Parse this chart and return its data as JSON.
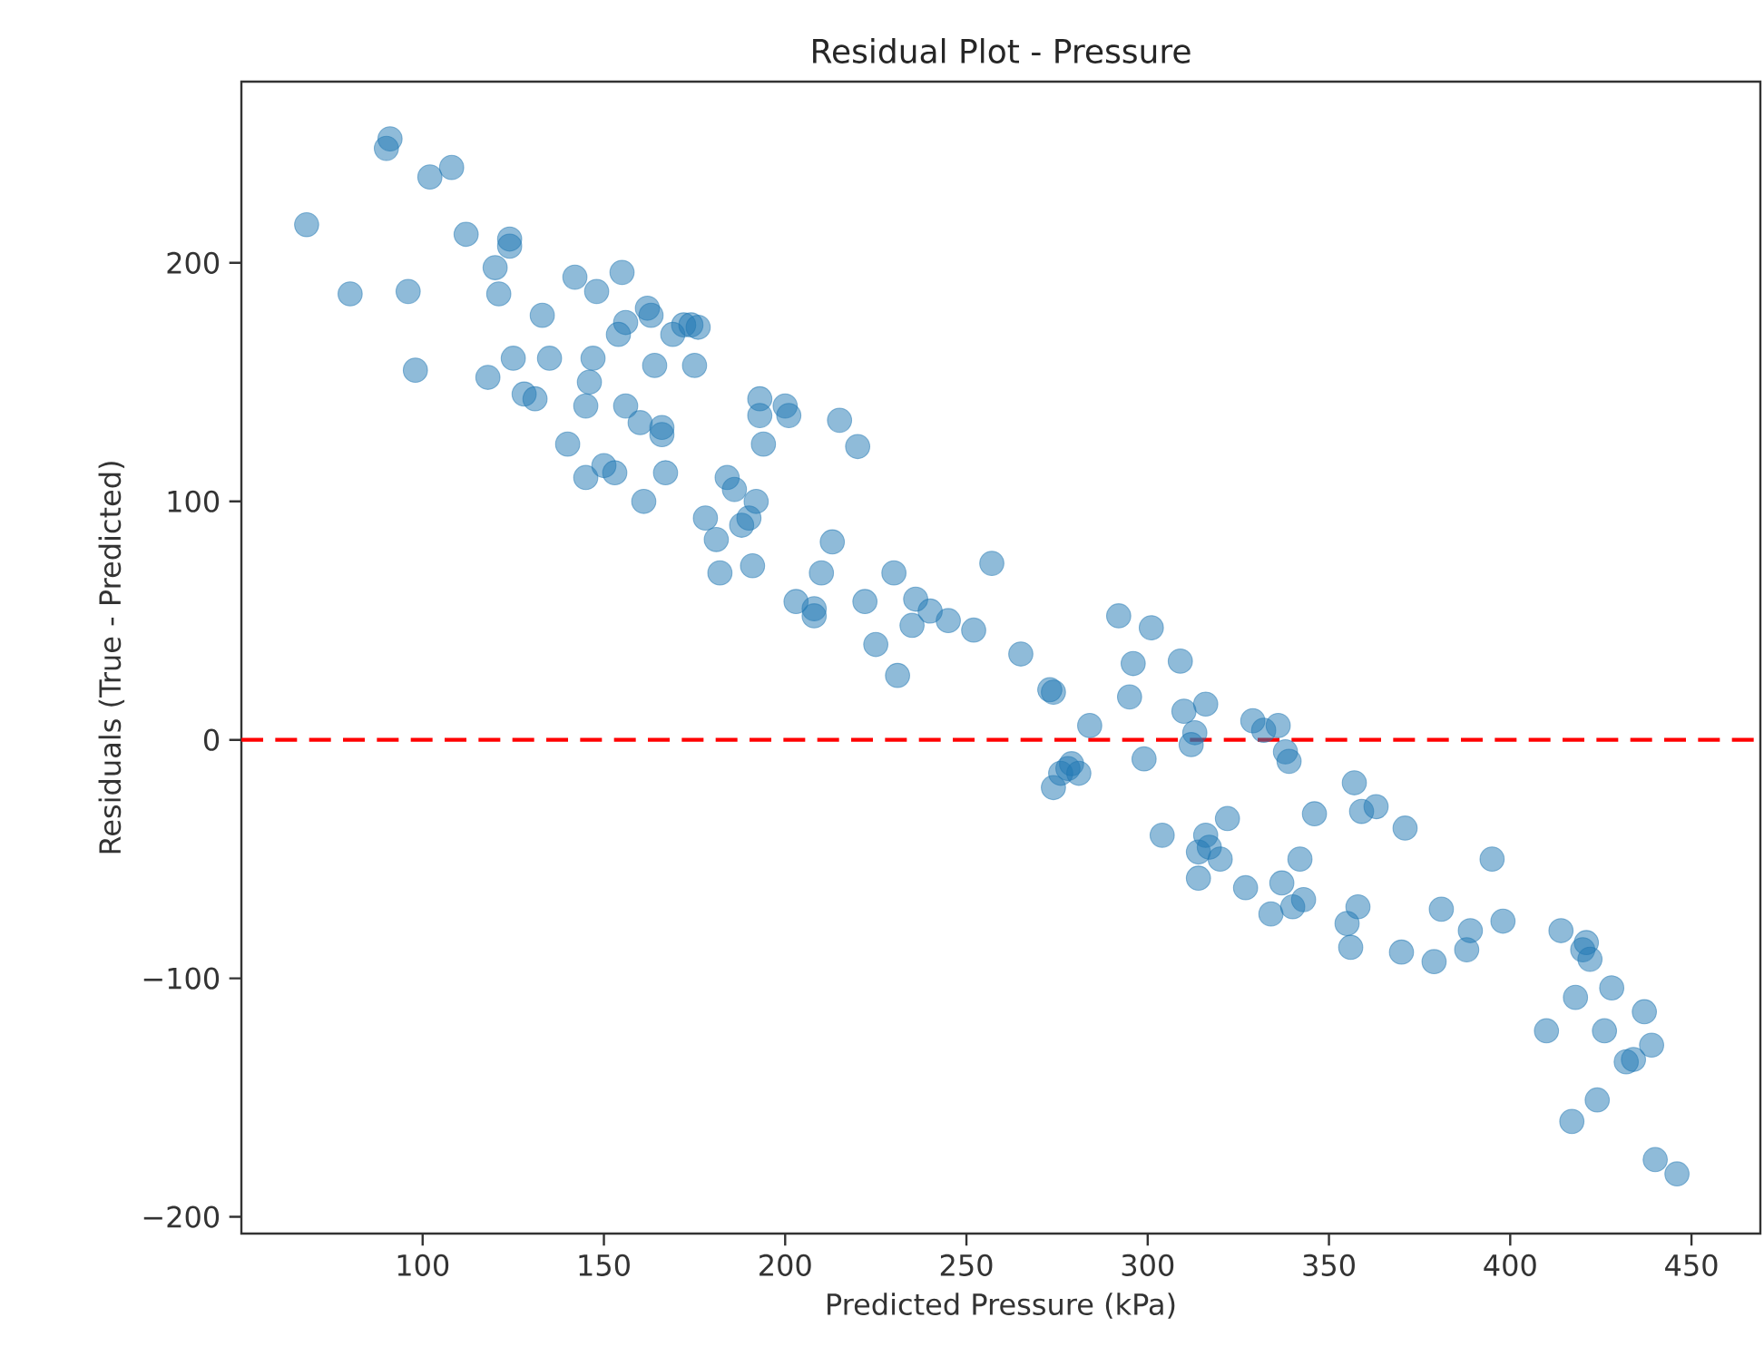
{
  "chart_data": {
    "type": "scatter",
    "title": "Residual Plot - Pressure",
    "xlabel": "Predicted Pressure (kPa)",
    "ylabel": "Residuals (True - Predicted)",
    "xlim": [
      50,
      469
    ],
    "ylim": [
      -207,
      276
    ],
    "xticks": [
      100,
      150,
      200,
      250,
      300,
      350,
      400,
      450
    ],
    "yticks": [
      {
        "value": -200,
        "label": "−200"
      },
      {
        "value": -100,
        "label": "−100"
      },
      0,
      100,
      200
    ],
    "grid": false,
    "ref_lines": [
      {
        "axis": "y",
        "value": 0,
        "color": "#ff0000",
        "line_style": "dashed"
      }
    ],
    "series": [
      {
        "color": "#1f77b4",
        "x": [
          68,
          80,
          90,
          91,
          96,
          98,
          102,
          108,
          112,
          118,
          120,
          121,
          124,
          124,
          125,
          128,
          131,
          133,
          135,
          140,
          142,
          145,
          145,
          146,
          147,
          148,
          150,
          153,
          154,
          155,
          156,
          156,
          160,
          161,
          162,
          163,
          164,
          166,
          166,
          167,
          169,
          172,
          174,
          175,
          176,
          178,
          181,
          182,
          184,
          186,
          188,
          190,
          191,
          192,
          193,
          193,
          194,
          200,
          201,
          203,
          208,
          208,
          210,
          213,
          215,
          220,
          222,
          225,
          230,
          231,
          235,
          236,
          240,
          245,
          252,
          257,
          265,
          273,
          274,
          274,
          276,
          278,
          279,
          281,
          284,
          292,
          295,
          296,
          299,
          301,
          304,
          309,
          310,
          312,
          313,
          314,
          314,
          316,
          316,
          317,
          320,
          322,
          327,
          329,
          332,
          334,
          336,
          337,
          338,
          339,
          340,
          342,
          343,
          346,
          355,
          356,
          357,
          358,
          359,
          363,
          370,
          371,
          379,
          381,
          388,
          389,
          395,
          398,
          410,
          414,
          417,
          418,
          420,
          421,
          422,
          424,
          426,
          428,
          432,
          434,
          437,
          439,
          440,
          446
        ],
        "values": [
          216,
          187,
          248,
          252,
          188,
          155,
          236,
          240,
          212,
          152,
          198,
          187,
          210,
          207,
          160,
          145,
          143,
          178,
          160,
          124,
          194,
          110,
          140,
          150,
          160,
          188,
          115,
          112,
          170,
          196,
          175,
          140,
          133,
          100,
          181,
          178,
          157,
          131,
          128,
          112,
          170,
          174,
          174,
          157,
          173,
          93,
          84,
          70,
          110,
          105,
          90,
          93,
          73,
          100,
          143,
          136,
          124,
          140,
          136,
          58,
          55,
          52,
          70,
          83,
          134,
          123,
          58,
          40,
          70,
          27,
          48,
          59,
          54,
          50,
          46,
          74,
          36,
          21,
          20,
          -20,
          -14,
          -12,
          -10,
          -14,
          6,
          52,
          18,
          32,
          -8,
          47,
          -40,
          33,
          12,
          -2,
          3,
          -47,
          -58,
          15,
          -40,
          -45,
          -50,
          -33,
          -62,
          8,
          4,
          -73,
          6,
          -60,
          -5,
          -9,
          -70,
          -50,
          -67,
          -31,
          -77,
          -87,
          -18,
          -70,
          -30,
          -28,
          -89,
          -37,
          -93,
          -71,
          -88,
          -80,
          -50,
          -76,
          -122,
          -80,
          -160,
          -108,
          -88,
          -85,
          -92,
          -151,
          -122,
          -104,
          -135,
          -134,
          -114,
          -128,
          -176,
          -182
        ]
      }
    ]
  }
}
